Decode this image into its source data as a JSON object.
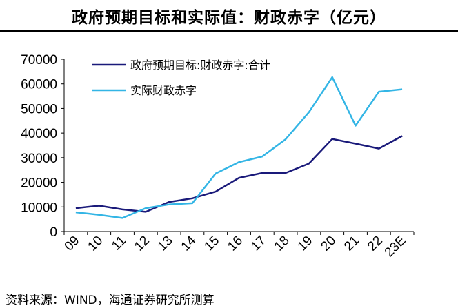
{
  "figure": {
    "title": "政府预期目标和实际值：财政赤字（亿元）",
    "source": "资料来源：WIND，海通证券研究所测算"
  },
  "chart_data": {
    "type": "line",
    "categories": [
      "09",
      "10",
      "11",
      "12",
      "13",
      "14",
      "15",
      "16",
      "17",
      "18",
      "19",
      "20",
      "21",
      "22",
      "23E"
    ],
    "ylim": [
      0,
      70000
    ],
    "yticks": [
      "0",
      "10000",
      "20000",
      "30000",
      "40000",
      "50000",
      "60000",
      "70000"
    ],
    "ytick_values": [
      0,
      10000,
      20000,
      30000,
      40000,
      50000,
      60000,
      70000
    ],
    "grid": false,
    "legend_position": "top-left",
    "series": [
      {
        "name": "政府预期目标:财政赤字:合计",
        "color": "#1a1a7a",
        "values": [
          9500,
          10500,
          9000,
          8000,
          12000,
          13500,
          16200,
          21800,
          23800,
          23800,
          27600,
          37600,
          35700,
          33700,
          38800
        ]
      },
      {
        "name": "实际财政赤字",
        "color": "#33b5e5",
        "values": [
          7800,
          6800,
          5500,
          9500,
          11000,
          11500,
          23600,
          28200,
          30500,
          37500,
          48500,
          62700,
          43000,
          56800,
          57800
        ]
      }
    ]
  }
}
